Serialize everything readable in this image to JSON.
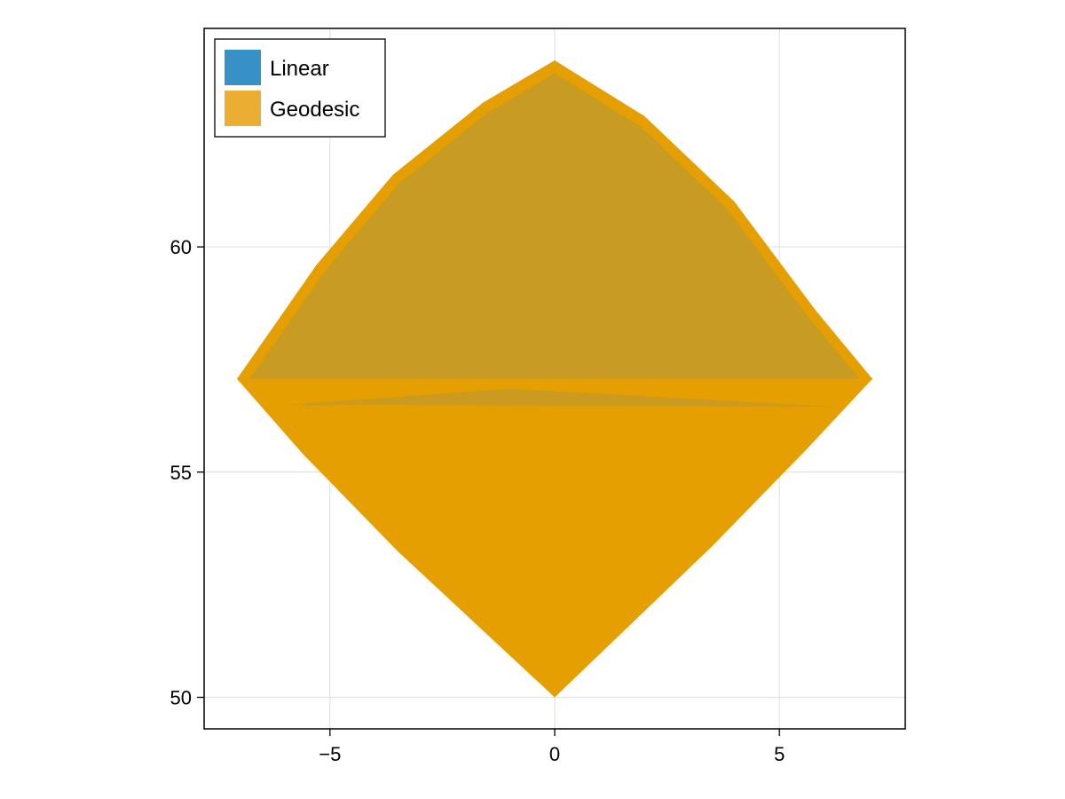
{
  "chart_data": {
    "type": "area",
    "title": "",
    "xlabel": "",
    "ylabel": "",
    "xlim": [
      -7.8,
      7.8
    ],
    "ylim": [
      49.3,
      64.85
    ],
    "xticks": [
      -5,
      0,
      5
    ],
    "xtick_labels": [
      "−5",
      "0",
      "5"
    ],
    "yticks": [
      50,
      55,
      60
    ],
    "ytick_labels": [
      "50",
      "55",
      "60"
    ],
    "grid": true,
    "legend_position": "top-left",
    "series": [
      {
        "name": "Linear",
        "color": "#0072b2",
        "legend_color": "#3591c6",
        "polygon": [
          [
            0,
            50
          ],
          [
            7.07,
            57.07
          ],
          [
            0,
            64.14
          ],
          [
            -7.07,
            57.07
          ]
        ]
      },
      {
        "name": "Geodesic",
        "color": "#e69f00",
        "legend_color": "#ebae33",
        "lower_polygon": [
          [
            -7.07,
            57.07
          ],
          [
            -5.6,
            55.4
          ],
          [
            -3.5,
            53.25
          ],
          [
            0,
            50
          ],
          [
            3.5,
            53.35
          ],
          [
            5.6,
            55.5
          ],
          [
            7.07,
            57.07
          ],
          [
            5.2,
            57.0
          ],
          [
            0,
            56.6
          ],
          [
            -5.5,
            56.5
          ]
        ],
        "upper_polygon": [
          [
            -7.07,
            57.07
          ],
          [
            -5.3,
            59.6
          ],
          [
            -3.6,
            61.6
          ],
          [
            -1.6,
            63.2
          ],
          [
            0,
            64.14
          ],
          [
            2.0,
            62.9
          ],
          [
            4.0,
            61.0
          ],
          [
            5.8,
            58.6
          ],
          [
            7.07,
            57.07
          ],
          [
            3.0,
            56.6
          ],
          [
            -1.5,
            56.55
          ],
          [
            -5.8,
            56.45
          ]
        ],
        "upper_shade": "#c49a26"
      }
    ],
    "legend": [
      {
        "label": "Linear",
        "color": "#3591c6"
      },
      {
        "label": "Geodesic",
        "color": "#ebae33"
      }
    ]
  }
}
